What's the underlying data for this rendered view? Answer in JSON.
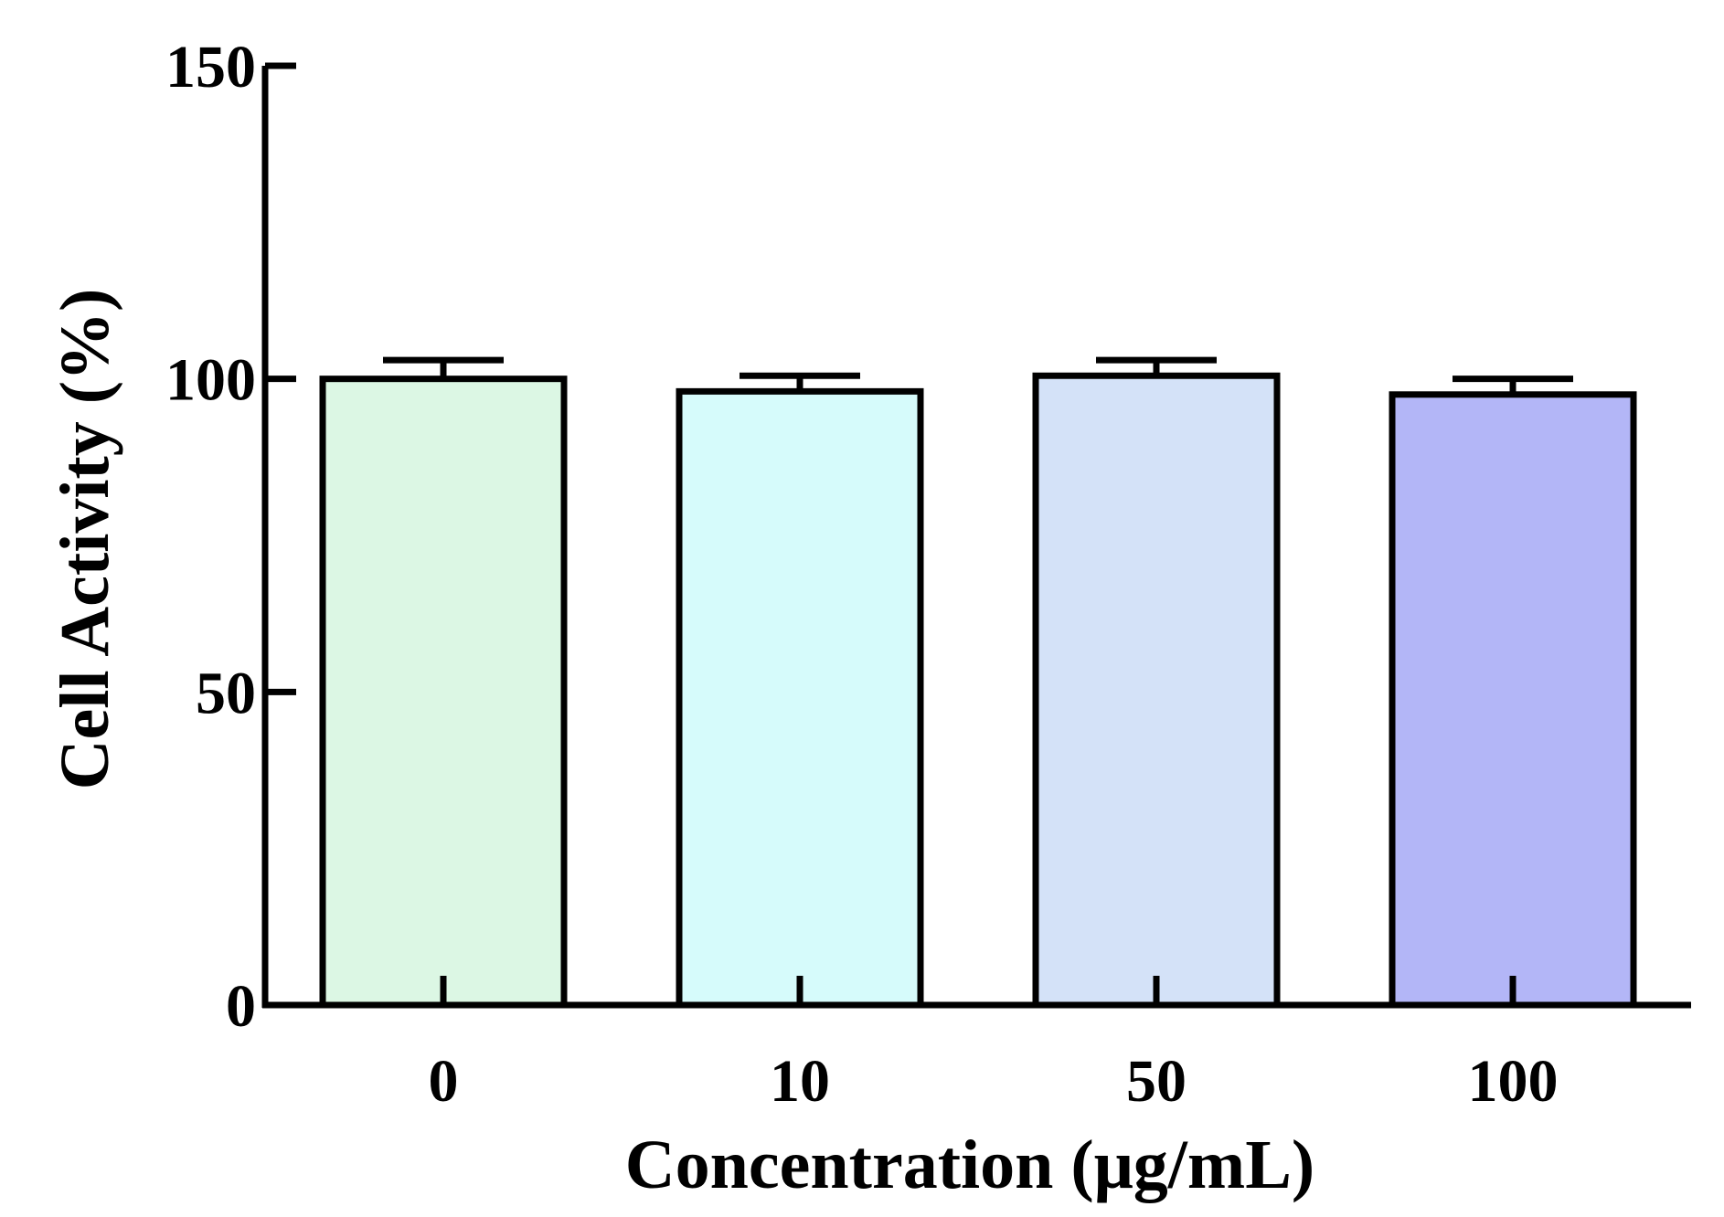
{
  "chart_data": {
    "type": "bar",
    "title": "",
    "xlabel": "Concentration (μg/mL)",
    "ylabel": "Cell Activity (%)",
    "categories": [
      "0",
      "10",
      "50",
      "100"
    ],
    "values": [
      100,
      98,
      100.5,
      97.5
    ],
    "error": [
      3,
      2.5,
      2.5,
      2.5
    ],
    "ylim": [
      0,
      150
    ],
    "yticks": [
      "0",
      "50",
      "100",
      "150"
    ],
    "grid": false,
    "legend": "none",
    "bar_colors": [
      "#dcf7e4",
      "#d6fbfb",
      "#d4e2f8",
      "#b3b6f7"
    ],
    "edge_color": "#000000"
  }
}
